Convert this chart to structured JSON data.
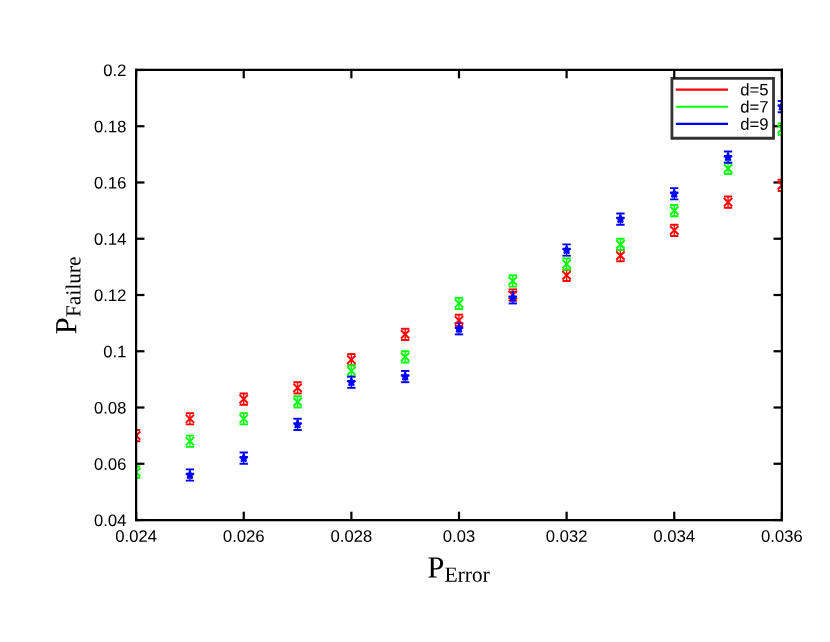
{
  "chart_data": {
    "type": "scatter",
    "xlabel": "P$_{Error}$",
    "ylabel": "P$_{Failure}$",
    "x": [
      0.024,
      0.025,
      0.026,
      0.027,
      0.028,
      0.029,
      0.03,
      0.031,
      0.032,
      0.033,
      0.034,
      0.035,
      0.036
    ],
    "series": [
      {
        "name": "d=5",
        "color": "#ff0000",
        "marker": "cross",
        "values": [
          0.07,
          0.076,
          0.083,
          0.087,
          0.097,
          0.106,
          0.111,
          0.12,
          0.127,
          0.134,
          0.143,
          0.153,
          0.159
        ],
        "errors": [
          0.002,
          0.002,
          0.002,
          0.002,
          0.002,
          0.002,
          0.002,
          0.002,
          0.002,
          0.002,
          0.002,
          0.002,
          0.002
        ]
      },
      {
        "name": "d=7",
        "color": "#00ff00",
        "marker": "cross",
        "values": [
          0.057,
          0.068,
          0.076,
          0.082,
          0.093,
          0.098,
          0.117,
          0.125,
          0.131,
          0.138,
          0.15,
          0.165,
          0.179
        ],
        "errors": [
          0.002,
          0.002,
          0.002,
          0.002,
          0.002,
          0.002,
          0.002,
          0.002,
          0.002,
          0.002,
          0.002,
          0.002,
          0.002
        ]
      },
      {
        "name": "d=9",
        "color": "#0000ff",
        "marker": "star",
        "values": [
          null,
          0.056,
          0.062,
          0.074,
          0.089,
          0.091,
          0.108,
          0.119,
          0.136,
          0.147,
          0.156,
          0.169,
          0.187
        ],
        "errors": [
          null,
          0.002,
          0.002,
          0.002,
          0.002,
          0.002,
          0.002,
          0.002,
          0.002,
          0.002,
          0.002,
          0.002,
          0.002
        ]
      }
    ],
    "xlim": [
      0.024,
      0.036
    ],
    "ylim": [
      0.04,
      0.2
    ],
    "xticks": [
      0.024,
      0.026,
      0.028,
      0.03,
      0.032,
      0.034,
      0.036
    ],
    "yticks": [
      0.04,
      0.06,
      0.08,
      0.1,
      0.12,
      0.14,
      0.16,
      0.18,
      0.2
    ],
    "grid": false,
    "legend": "top right"
  }
}
